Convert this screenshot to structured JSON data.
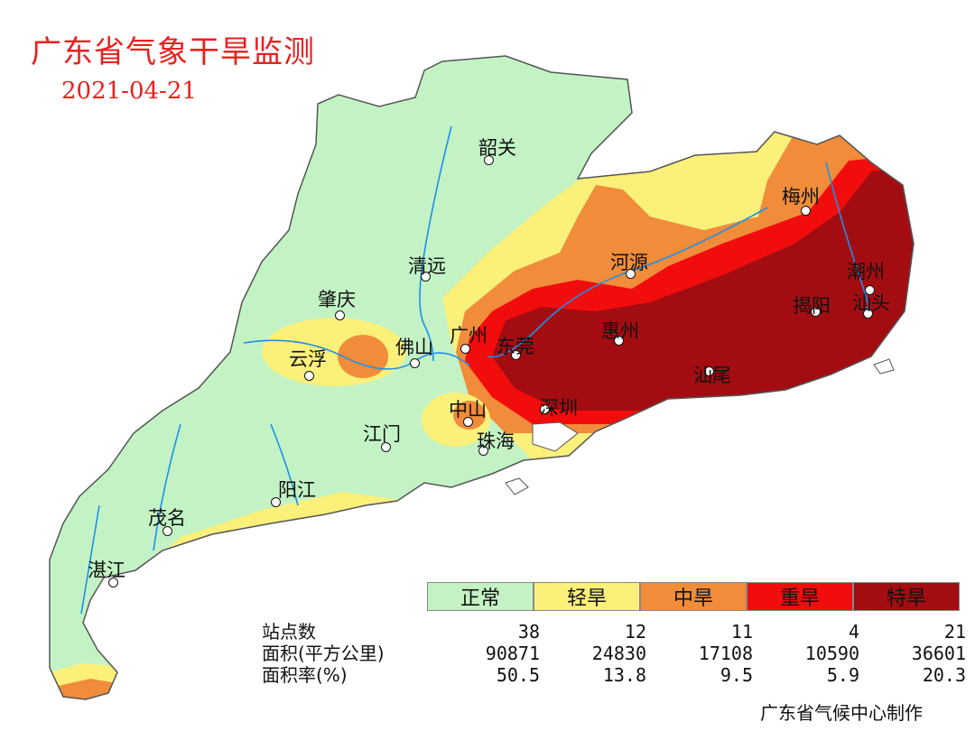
{
  "title": "广东省气象干旱监测",
  "date": "2021-04-21",
  "colors": {
    "normal": "#c3f3c5",
    "light": "#faf07a",
    "moderate": "#f08c3a",
    "severe": "#f20d0d",
    "extreme": "#a30d12",
    "river": "#1e90e8",
    "border": "#555555"
  },
  "cities": [
    {
      "name": "韶关"
    },
    {
      "name": "梅州"
    },
    {
      "name": "河源"
    },
    {
      "name": "清远"
    },
    {
      "name": "潮州"
    },
    {
      "name": "肇庆"
    },
    {
      "name": "广州"
    },
    {
      "name": "揭阳"
    },
    {
      "name": "汕头"
    },
    {
      "name": "惠州"
    },
    {
      "name": "云浮"
    },
    {
      "name": "佛山"
    },
    {
      "name": "东莞"
    },
    {
      "name": "汕尾"
    },
    {
      "name": "中山"
    },
    {
      "name": "深圳"
    },
    {
      "name": "江门"
    },
    {
      "name": "珠海"
    },
    {
      "name": "阳江"
    },
    {
      "name": "茂名"
    },
    {
      "name": "湛江"
    }
  ],
  "legend": [
    {
      "label": "正常",
      "color": "#c3f3c5"
    },
    {
      "label": "轻旱",
      "color": "#faf07a"
    },
    {
      "label": "中旱",
      "color": "#f08c3a"
    },
    {
      "label": "重旱",
      "color": "#f20d0d"
    },
    {
      "label": "特旱",
      "color": "#a30d12"
    }
  ],
  "stats": {
    "row_labels": [
      "站点数",
      "面积(平方公里)",
      "面积率(%)"
    ],
    "stations": [
      "38",
      "12",
      "11",
      "4",
      "21"
    ],
    "area": [
      "90871",
      "24830",
      "17108",
      "10590",
      "36601"
    ],
    "rate": [
      "50.5",
      "13.8",
      "9.5",
      "5.9",
      "20.3"
    ]
  },
  "credit": "广东省气候中心制作"
}
